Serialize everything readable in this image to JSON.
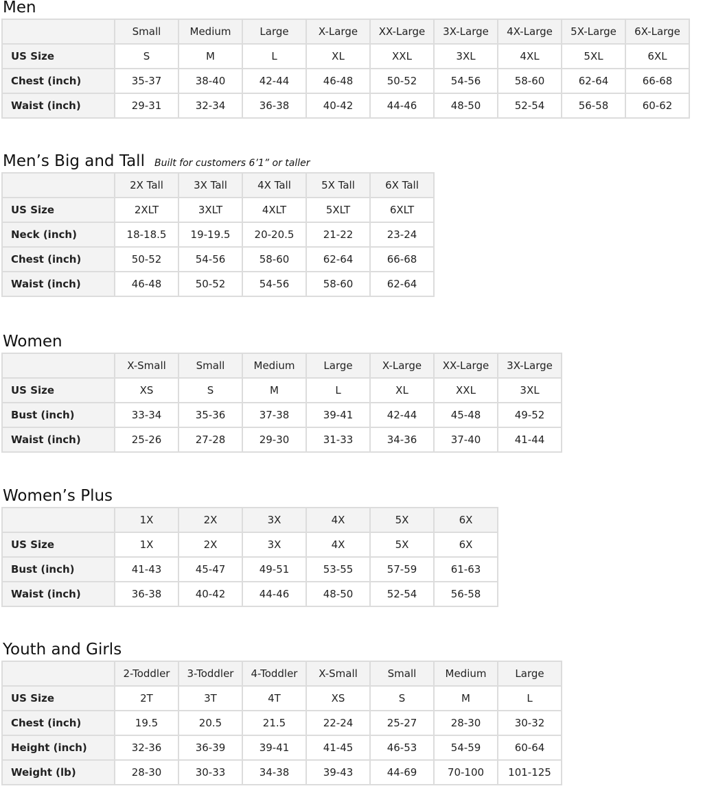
{
  "sections": [
    {
      "title": "Men",
      "subtitle": "",
      "columns": [
        "Small",
        "Medium",
        "Large",
        "X-Large",
        "XX-Large",
        "3X-Large",
        "4X-Large",
        "5X-Large",
        "6X-Large"
      ],
      "rows": [
        {
          "label": "US Size",
          "values": [
            "S",
            "M",
            "L",
            "XL",
            "XXL",
            "3XL",
            "4XL",
            "5XL",
            "6XL"
          ]
        },
        {
          "label": "Chest (inch)",
          "values": [
            "35-37",
            "38-40",
            "42-44",
            "46-48",
            "50-52",
            "54-56",
            "58-60",
            "62-64",
            "66-68"
          ]
        },
        {
          "label": "Waist (inch)",
          "values": [
            "29-31",
            "32-34",
            "36-38",
            "40-42",
            "44-46",
            "48-50",
            "52-54",
            "56-58",
            "60-62"
          ]
        }
      ]
    },
    {
      "title": "Men’s Big and Tall",
      "subtitle": "Built for customers 6’1” or taller",
      "columns": [
        "2X Tall",
        "3X Tall",
        "4X Tall",
        "5X Tall",
        "6X Tall"
      ],
      "rows": [
        {
          "label": "US Size",
          "values": [
            "2XLT",
            "3XLT",
            "4XLT",
            "5XLT",
            "6XLT"
          ]
        },
        {
          "label": "Neck (inch)",
          "values": [
            "18-18.5",
            "19-19.5",
            "20-20.5",
            "21-22",
            "23-24"
          ]
        },
        {
          "label": "Chest (inch)",
          "values": [
            "50-52",
            "54-56",
            "58-60",
            "62-64",
            "66-68"
          ]
        },
        {
          "label": "Waist (inch)",
          "values": [
            "46-48",
            "50-52",
            "54-56",
            "58-60",
            "62-64"
          ]
        }
      ]
    },
    {
      "title": "Women",
      "subtitle": "",
      "columns": [
        "X-Small",
        "Small",
        "Medium",
        "Large",
        "X-Large",
        "XX-Large",
        "3X-Large"
      ],
      "rows": [
        {
          "label": "US Size",
          "values": [
            "XS",
            "S",
            "M",
            "L",
            "XL",
            "XXL",
            "3XL"
          ]
        },
        {
          "label": "Bust (inch)",
          "values": [
            "33-34",
            "35-36",
            "37-38",
            "39-41",
            "42-44",
            "45-48",
            "49-52"
          ]
        },
        {
          "label": "Waist (inch)",
          "values": [
            "25-26",
            "27-28",
            "29-30",
            "31-33",
            "34-36",
            "37-40",
            "41-44"
          ]
        }
      ]
    },
    {
      "title": "Women’s  Plus",
      "subtitle": "",
      "columns": [
        "1X",
        "2X",
        "3X",
        "4X",
        "5X",
        "6X"
      ],
      "rows": [
        {
          "label": "US Size",
          "values": [
            "1X",
            "2X",
            "3X",
            "4X",
            "5X",
            "6X"
          ]
        },
        {
          "label": "Bust (inch)",
          "values": [
            "41-43",
            "45-47",
            "49-51",
            "53-55",
            "57-59",
            "61-63"
          ]
        },
        {
          "label": "Waist (inch)",
          "values": [
            "36-38",
            "40-42",
            "44-46",
            "48-50",
            "52-54",
            "56-58"
          ]
        }
      ]
    },
    {
      "title": "Youth and Girls",
      "subtitle": "",
      "columns": [
        "2-Toddler",
        "3-Toddler",
        "4-Toddler",
        "X-Small",
        "Small",
        "Medium",
        "Large"
      ],
      "rows": [
        {
          "label": "US Size",
          "values": [
            "2T",
            "3T",
            "4T",
            "XS",
            "S",
            "M",
            "L"
          ]
        },
        {
          "label": "Chest (inch)",
          "values": [
            "19.5",
            "20.5",
            "21.5",
            "22-24",
            "25-27",
            "28-30",
            "30-32"
          ]
        },
        {
          "label": "Height (inch)",
          "values": [
            "32-36",
            "36-39",
            "39-41",
            "41-45",
            "46-53",
            "54-59",
            "60-64"
          ]
        },
        {
          "label": "Weight (lb)",
          "values": [
            "28-30",
            "30-33",
            "34-38",
            "39-43",
            "44-69",
            "70-100",
            "101-125"
          ]
        }
      ]
    }
  ]
}
